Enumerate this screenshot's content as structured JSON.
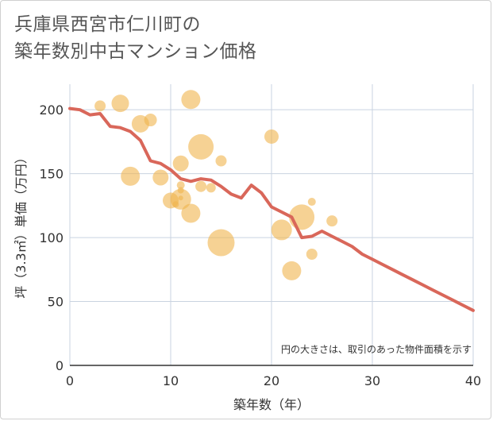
{
  "chart_data": {
    "type": "scatter",
    "title_lines": [
      "兵庫県西宮市仁川町の",
      "築年数別中古マンション価格"
    ],
    "xlabel": "築年数（年）",
    "ylabel": "坪（3.3㎡）単価（万円）",
    "note": "円の大きさは、取引のあった物件面積を示す",
    "xlim": [
      0,
      40
    ],
    "ylim": [
      0,
      220
    ],
    "x_ticks": [
      "0",
      "10",
      "20",
      "30",
      "40"
    ],
    "y_ticks": [
      "0",
      "50",
      "100",
      "150",
      "200"
    ],
    "grid": true,
    "colors": {
      "bubble": "#f0b44c",
      "line": "#d9675a",
      "grid": "#c9d3e0",
      "axis": "#333333"
    },
    "bubbles": [
      {
        "x": 3,
        "y": 203,
        "size": 7
      },
      {
        "x": 5,
        "y": 205,
        "size": 11
      },
      {
        "x": 7,
        "y": 189,
        "size": 11
      },
      {
        "x": 8,
        "y": 192,
        "size": 8
      },
      {
        "x": 6,
        "y": 148,
        "size": 12
      },
      {
        "x": 9,
        "y": 147,
        "size": 10
      },
      {
        "x": 10,
        "y": 129,
        "size": 10
      },
      {
        "x": 10.5,
        "y": 126,
        "size": 4
      },
      {
        "x": 11,
        "y": 158,
        "size": 10
      },
      {
        "x": 11,
        "y": 141,
        "size": 5
      },
      {
        "x": 11,
        "y": 137,
        "size": 4
      },
      {
        "x": 11,
        "y": 130,
        "size": 13
      },
      {
        "x": 11,
        "y": 131,
        "size": 3
      },
      {
        "x": 12,
        "y": 208,
        "size": 12
      },
      {
        "x": 12,
        "y": 119,
        "size": 12
      },
      {
        "x": 13,
        "y": 171,
        "size": 16
      },
      {
        "x": 13,
        "y": 140,
        "size": 7
      },
      {
        "x": 14,
        "y": 139,
        "size": 6
      },
      {
        "x": 15,
        "y": 160,
        "size": 7
      },
      {
        "x": 15,
        "y": 96,
        "size": 17
      },
      {
        "x": 20,
        "y": 179,
        "size": 9
      },
      {
        "x": 21,
        "y": 106,
        "size": 13
      },
      {
        "x": 22,
        "y": 74,
        "size": 12
      },
      {
        "x": 23,
        "y": 116,
        "size": 16
      },
      {
        "x": 24,
        "y": 128,
        "size": 5
      },
      {
        "x": 24,
        "y": 87,
        "size": 7
      },
      {
        "x": 26,
        "y": 113,
        "size": 7
      }
    ],
    "series": [
      {
        "x": [
          0,
          1,
          2,
          3,
          4,
          5,
          6,
          7,
          8,
          9,
          10,
          11,
          12,
          13,
          14,
          15,
          16,
          17,
          18,
          19,
          20,
          21,
          22,
          23,
          24,
          25,
          26,
          27,
          28,
          29,
          30,
          31,
          32,
          33,
          34,
          35,
          36,
          37,
          38,
          39,
          40
        ],
        "y": [
          201,
          200,
          196,
          197,
          187,
          186,
          183,
          176,
          160,
          158,
          153,
          146,
          144,
          146,
          145,
          140,
          134,
          131,
          141,
          135,
          124,
          120,
          116,
          100,
          101,
          105,
          101,
          97,
          93,
          87,
          83,
          79,
          75,
          71,
          67,
          63,
          59,
          55,
          51,
          47,
          43
        ]
      }
    ]
  }
}
